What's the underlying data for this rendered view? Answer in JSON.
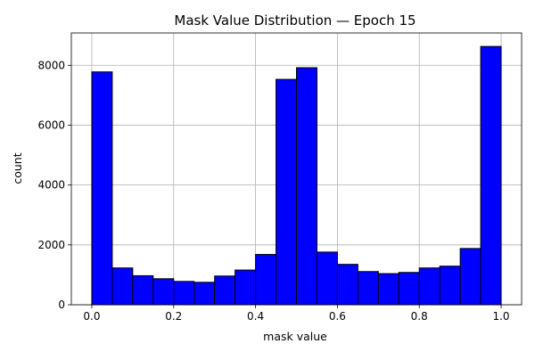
{
  "chart_data": {
    "type": "bar",
    "subtype": "histogram",
    "title": "Mask Value Distribution — Epoch 15",
    "xlabel": "mask value",
    "ylabel": "count",
    "xlim": [
      -0.05,
      1.05
    ],
    "ylim": [
      0,
      9080
    ],
    "grid": true,
    "xticks": [
      0.0,
      0.2,
      0.4,
      0.6,
      0.8,
      1.0
    ],
    "xtick_labels": [
      "0.0",
      "0.2",
      "0.4",
      "0.6",
      "0.8",
      "1.0"
    ],
    "yticks": [
      0,
      2000,
      4000,
      6000,
      8000
    ],
    "ytick_labels": [
      "0",
      "2000",
      "4000",
      "6000",
      "8000"
    ],
    "bin_edges": [
      0.0,
      0.05,
      0.1,
      0.15,
      0.2,
      0.25,
      0.3,
      0.35,
      0.4,
      0.45,
      0.5,
      0.55,
      0.6,
      0.65,
      0.7,
      0.75,
      0.8,
      0.85,
      0.9,
      0.95,
      1.0
    ],
    "values": [
      7780,
      1230,
      970,
      870,
      780,
      750,
      960,
      1160,
      1680,
      7530,
      7920,
      1760,
      1350,
      1110,
      1040,
      1080,
      1230,
      1290,
      1880,
      8630
    ],
    "bar_color": "#0000ff",
    "edge_color": "#000000"
  }
}
